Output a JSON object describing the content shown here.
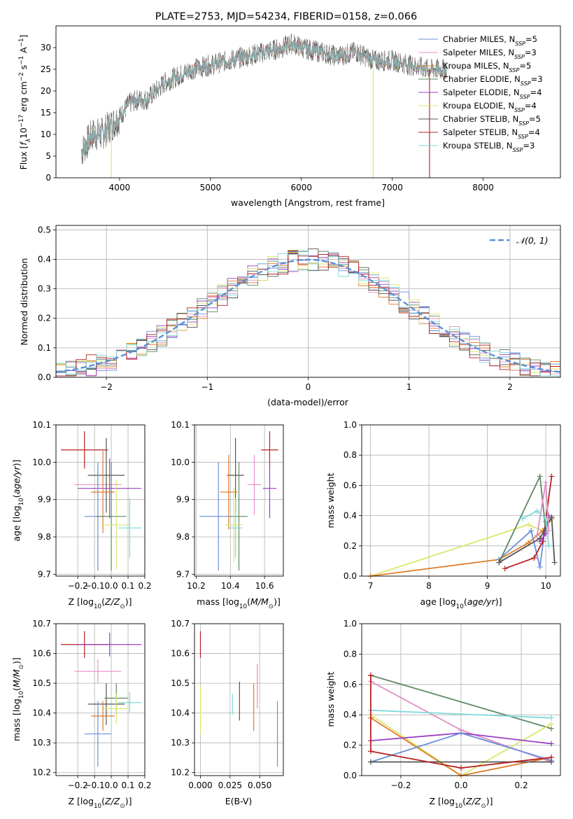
{
  "chart_data": [
    {
      "type": "line",
      "title": "PLATE=2753, MJD=54234, FIBERID=0158, z=0.066",
      "xlabel": "wavelength [Angstrom, rest frame]",
      "ylabel": "Flux [f_λ 10^-17 erg cm^-2 s^-1 A^-1]",
      "xlim": [
        3300,
        8850
      ],
      "ylim": [
        0,
        35
      ],
      "xticks": [
        4000,
        5000,
        6000,
        7000,
        8000
      ],
      "yticks": [
        0,
        5,
        10,
        15,
        20,
        25,
        30
      ],
      "legend_position": "top-right",
      "continuum": {
        "x": [
          3580,
          3700,
          3800,
          3900,
          4000,
          4100,
          4200,
          4300,
          4400,
          4500,
          4600,
          4800,
          5000,
          5200,
          5400,
          5600,
          5800,
          5900,
          6000,
          6200,
          6400,
          6600,
          6800,
          7000,
          7200,
          7400,
          7600
        ],
        "y": [
          6,
          10,
          10,
          12,
          14,
          17,
          18,
          18,
          20,
          22,
          23,
          25,
          26,
          27,
          28,
          29,
          30,
          31,
          30,
          29,
          28,
          29,
          27,
          27,
          26,
          25,
          25
        ]
      },
      "series": [
        {
          "name": "Chabrier MILES, N_SSP=5",
          "color": "#6a8fd8"
        },
        {
          "name": "Salpeter MILES, N_SSP=3",
          "color": "#e48ec6"
        },
        {
          "name": "Kroupa MILES, N_SSP=5",
          "color": "#e07b2a"
        },
        {
          "name": "Chabrier ELODIE, N_SSP=3",
          "color": "#5e8a64"
        },
        {
          "name": "Salpeter ELODIE, N_SSP=4",
          "color": "#9a3fc2"
        },
        {
          "name": "Kroupa ELODIE, N_SSP=4",
          "color": "#d8e86a"
        },
        {
          "name": "Chabrier STELIB, N_SSP=5",
          "color": "#555555"
        },
        {
          "name": "Salpeter STELIB, N_SSP=4",
          "color": "#b52020"
        },
        {
          "name": "Kroupa STELIB, N_SSP=3",
          "color": "#7fd8dc"
        }
      ],
      "legend_labels": [
        {
          "base": "Chabrier MILES, N",
          "sub": "SSP",
          "tail": "=5"
        },
        {
          "base": "Salpeter MILES, N",
          "sub": "SSP",
          "tail": "=3"
        },
        {
          "base": "Kroupa MILES, N",
          "sub": "SSP",
          "tail": "=5"
        },
        {
          "base": "Chabrier ELODIE, N",
          "sub": "SSP",
          "tail": "=3"
        },
        {
          "base": "Salpeter ELODIE, N",
          "sub": "SSP",
          "tail": "=4"
        },
        {
          "base": "Kroupa ELODIE, N",
          "sub": "SSP",
          "tail": "=4"
        },
        {
          "base": "Chabrier STELIB, N",
          "sub": "SSP",
          "tail": "=5"
        },
        {
          "base": "Salpeter STELIB, N",
          "sub": "SSP",
          "tail": "=4"
        },
        {
          "base": "Kroupa STELIB, N",
          "sub": "SSP",
          "tail": "=3"
        }
      ],
      "dropouts": [
        {
          "x": 3910,
          "color": "#d8e86a"
        },
        {
          "x": 6790,
          "color": "#d8e86a"
        },
        {
          "x": 7410,
          "color": "#b52020"
        }
      ]
    },
    {
      "type": "line",
      "title": "",
      "xlabel": "(data-model)/error",
      "ylabel": "Normed distribution",
      "xlim": [
        -2.5,
        2.5
      ],
      "ylim": [
        0,
        0.515
      ],
      "xticks": [
        -2,
        -1,
        0,
        1,
        2
      ],
      "yticks": [
        0.0,
        0.1,
        0.2,
        0.3,
        0.4,
        0.5
      ],
      "grid": true,
      "legend_position": "top-right",
      "legend_label": "𝒩(0, 1)",
      "reference_curve": "normal(0,1)",
      "series_colors": [
        "#6a8fd8",
        "#e48ec6",
        "#e07b2a",
        "#5e8a64",
        "#9a3fc2",
        "#d8e86a",
        "#555555",
        "#b52020",
        "#7fd8dc"
      ]
    },
    {
      "type": "scatter",
      "xlabel": "Z [log10(Z/Z⊙)]",
      "ylabel": "age [log10(age/yr)]",
      "xlim": [
        -0.33,
        0.2
      ],
      "ylim": [
        9.695,
        10.1
      ],
      "xticks": [
        -0.2,
        -0.1,
        0.0,
        0.1,
        0.2
      ],
      "yticks": [
        9.7,
        9.8,
        9.9,
        10.0,
        10.1
      ],
      "grid": true,
      "points": [
        {
          "x": -0.16,
          "y": 10.033,
          "xerr": 0.14,
          "yerr": 0.05,
          "color": "#b52020"
        },
        {
          "x": -0.08,
          "y": 9.94,
          "xerr": 0.14,
          "yerr": 0.04,
          "color": "#e48ec6"
        },
        {
          "x": -0.01,
          "y": 9.93,
          "xerr": 0.19,
          "yerr": 0.08,
          "color": "#9a3fc2"
        },
        {
          "x": -0.03,
          "y": 9.965,
          "xerr": 0.11,
          "yerr": 0.1,
          "color": "#555555"
        },
        {
          "x": -0.05,
          "y": 9.92,
          "xerr": 0.07,
          "yerr": 0.11,
          "color": "#e07b2a"
        },
        {
          "x": -0.08,
          "y": 9.855,
          "xerr": 0.08,
          "yerr": 0.145,
          "color": "#6a8fd8"
        },
        {
          "x": 0.0,
          "y": 9.855,
          "xerr": 0.09,
          "yerr": 0.145,
          "color": "#5e8a64"
        },
        {
          "x": 0.03,
          "y": 9.832,
          "xerr": 0.08,
          "yerr": 0.12,
          "color": "#d8e86a"
        },
        {
          "x": 0.11,
          "y": 9.824,
          "xerr": 0.07,
          "yerr": 0.08,
          "color": "#7fd8dc"
        }
      ]
    },
    {
      "type": "scatter",
      "xlabel": "mass [log10(M/M⊙)]",
      "ylabel": "",
      "xlim": [
        10.19,
        10.71
      ],
      "ylim": [
        9.695,
        10.1
      ],
      "xticks": [
        10.2,
        10.4,
        10.6
      ],
      "yticks": [
        9.7,
        9.8,
        9.9,
        10.0,
        10.1
      ],
      "grid": true,
      "points": [
        {
          "x": 10.63,
          "y": 10.033,
          "xerr": 0.05,
          "yerr": 0.05,
          "color": "#b52020"
        },
        {
          "x": 10.54,
          "y": 9.94,
          "xerr": 0.04,
          "yerr": 0.08,
          "color": "#e48ec6"
        },
        {
          "x": 10.63,
          "y": 9.93,
          "xerr": 0.04,
          "yerr": 0.08,
          "color": "#9a3fc2"
        },
        {
          "x": 10.43,
          "y": 9.965,
          "xerr": 0.05,
          "yerr": 0.1,
          "color": "#555555"
        },
        {
          "x": 10.39,
          "y": 9.92,
          "xerr": 0.05,
          "yerr": 0.1,
          "color": "#e07b2a"
        },
        {
          "x": 10.33,
          "y": 9.855,
          "xerr": 0.11,
          "yerr": 0.145,
          "color": "#6a8fd8"
        },
        {
          "x": 10.45,
          "y": 9.855,
          "xerr": 0.05,
          "yerr": 0.145,
          "color": "#5e8a64"
        },
        {
          "x": 10.42,
          "y": 9.832,
          "xerr": 0.05,
          "yerr": 0.1,
          "color": "#d8e86a"
        },
        {
          "x": 10.43,
          "y": 9.824,
          "xerr": 0.04,
          "yerr": 0.08,
          "color": "#7fd8dc"
        }
      ]
    },
    {
      "type": "line",
      "xlabel": "age [log10(age/yr)]",
      "ylabel": "mass weight",
      "xlim": [
        6.85,
        10.25
      ],
      "ylim": [
        0,
        1.0
      ],
      "xticks": [
        7,
        8,
        9,
        10
      ],
      "yticks": [
        0.0,
        0.2,
        0.4,
        0.6,
        0.8,
        1.0
      ],
      "grid": true,
      "series": [
        {
          "color": "#d8e86a",
          "x": [
            7.0,
            9.7,
            9.95,
            10.05
          ],
          "y": [
            0.0,
            0.34,
            0.3,
            0.36
          ]
        },
        {
          "color": "#e07b2a",
          "x": [
            7.0,
            9.2,
            9.7,
            9.95,
            10.1
          ],
          "y": [
            0.0,
            0.11,
            0.22,
            0.3,
            0.38
          ]
        },
        {
          "color": "#6a8fd8",
          "x": [
            9.2,
            9.75,
            9.9,
            10.0
          ],
          "y": [
            0.11,
            0.3,
            0.06,
            0.36
          ]
        },
        {
          "color": "#b52020",
          "x": [
            9.3,
            9.8,
            9.95,
            10.1
          ],
          "y": [
            0.05,
            0.12,
            0.23,
            0.66
          ]
        },
        {
          "color": "#5e8a64",
          "x": [
            9.2,
            9.9,
            10.0
          ],
          "y": [
            0.09,
            0.66,
            0.3
          ]
        },
        {
          "color": "#555555",
          "x": [
            9.2,
            9.9,
            10.1,
            10.15
          ],
          "y": [
            0.09,
            0.25,
            0.39,
            0.09
          ]
        },
        {
          "color": "#9a3fc2",
          "x": [
            9.9,
            10.0,
            10.05
          ],
          "y": [
            0.23,
            0.28,
            0.4
          ]
        },
        {
          "color": "#e48ec6",
          "x": [
            9.85,
            10.0,
            10.05
          ],
          "y": [
            0.27,
            0.62,
            0.3
          ]
        },
        {
          "color": "#7fd8dc",
          "x": [
            9.6,
            9.85,
            10.0,
            10.05
          ],
          "y": [
            0.38,
            0.43,
            0.38,
            0.2
          ]
        }
      ]
    },
    {
      "type": "scatter",
      "xlabel": "Z [log10(Z/Z⊙)]",
      "ylabel": "mass [log10(M/M⊙)]",
      "xlim": [
        -0.33,
        0.2
      ],
      "ylim": [
        10.19,
        10.7
      ],
      "xticks": [
        -0.2,
        -0.1,
        0.0,
        0.1,
        0.2
      ],
      "yticks": [
        10.2,
        10.3,
        10.4,
        10.5,
        10.6,
        10.7
      ],
      "grid": true,
      "points": [
        {
          "x": -0.16,
          "y": 10.63,
          "xerr": 0.14,
          "yerr": 0.045,
          "color": "#b52020"
        },
        {
          "x": -0.01,
          "y": 10.63,
          "xerr": 0.19,
          "yerr": 0.04,
          "color": "#9a3fc2"
        },
        {
          "x": -0.08,
          "y": 10.54,
          "xerr": 0.14,
          "yerr": 0.04,
          "color": "#e48ec6"
        },
        {
          "x": 0.03,
          "y": 10.45,
          "xerr": 0.07,
          "yerr": 0.05,
          "color": "#5e8a64"
        },
        {
          "x": -0.03,
          "y": 10.43,
          "xerr": 0.11,
          "yerr": 0.07,
          "color": "#555555"
        },
        {
          "x": 0.11,
          "y": 10.435,
          "xerr": 0.07,
          "yerr": 0.035,
          "color": "#7fd8dc"
        },
        {
          "x": 0.03,
          "y": 10.415,
          "xerr": 0.08,
          "yerr": 0.05,
          "color": "#d8e86a"
        },
        {
          "x": -0.05,
          "y": 10.39,
          "xerr": 0.07,
          "yerr": 0.05,
          "color": "#e07b2a"
        },
        {
          "x": -0.08,
          "y": 10.33,
          "xerr": 0.08,
          "yerr": 0.11,
          "color": "#6a8fd8"
        }
      ]
    },
    {
      "type": "scatter",
      "xlabel": "E(B-V)",
      "ylabel": "",
      "xlim": [
        -0.005,
        0.07
      ],
      "ylim": [
        10.19,
        10.7
      ],
      "xticks": [
        0.0,
        0.025,
        0.05
      ],
      "xticklabels": [
        "0.000",
        "0.025",
        "0.050"
      ],
      "yticks": [
        10.2,
        10.3,
        10.4,
        10.5,
        10.6,
        10.7
      ],
      "grid": true,
      "points": [
        {
          "x": 0.0,
          "y": 10.63,
          "yerr": 0.045,
          "color": "#b52020"
        },
        {
          "x": 0.0,
          "y": 10.41,
          "yerr": 0.08,
          "color": "#d8e86a"
        },
        {
          "x": 0.027,
          "y": 10.43,
          "yerr": 0.035,
          "color": "#7fd8dc"
        },
        {
          "x": 0.033,
          "y": 10.44,
          "yerr": 0.065,
          "color": "#555555"
        },
        {
          "x": 0.045,
          "y": 10.42,
          "yerr": 0.08,
          "color": "#e07b2a"
        },
        {
          "x": 0.048,
          "y": 10.49,
          "yerr": 0.075,
          "color": "#e48ec6"
        },
        {
          "x": 0.065,
          "y": 10.33,
          "yerr": 0.11,
          "color": "#6a8fd8"
        }
      ]
    },
    {
      "type": "line",
      "xlabel": "Z [log10(Z/Z⊙)]",
      "ylabel": "mass weight",
      "xlim": [
        -0.33,
        0.33
      ],
      "ylim": [
        0,
        1.0
      ],
      "xticks": [
        -0.2,
        0.0,
        0.2
      ],
      "yticks": [
        0.0,
        0.2,
        0.4,
        0.6,
        0.8,
        1.0
      ],
      "grid": true,
      "series": [
        {
          "color": "#5e8a64",
          "x": [
            -0.3,
            0.3
          ],
          "y": [
            0.66,
            0.31
          ]
        },
        {
          "color": "#e48ec6",
          "x": [
            -0.3,
            0.0,
            0.3
          ],
          "y": [
            0.62,
            0.3,
            0.09
          ]
        },
        {
          "color": "#7fd8dc",
          "x": [
            -0.3,
            0.3
          ],
          "y": [
            0.43,
            0.38
          ]
        },
        {
          "color": "#d8e86a",
          "x": [
            -0.3,
            0.0,
            0.3
          ],
          "y": [
            0.4,
            0.0,
            0.34
          ]
        },
        {
          "color": "#e07b2a",
          "x": [
            -0.3,
            0.0,
            0.3
          ],
          "y": [
            0.38,
            0.0,
            0.12
          ]
        },
        {
          "color": "#9a3fc2",
          "x": [
            -0.3,
            0.0,
            0.3
          ],
          "y": [
            0.23,
            0.28,
            0.21
          ]
        },
        {
          "color": "#6a8fd8",
          "x": [
            -0.3,
            0.0,
            0.3
          ],
          "y": [
            0.09,
            0.28,
            0.1
          ]
        },
        {
          "color": "#555555",
          "x": [
            -0.3,
            0.3
          ],
          "y": [
            0.09,
            0.09
          ]
        },
        {
          "color": "#b52020",
          "x": [
            -0.3,
            -0.3,
            0.0,
            0.3
          ],
          "y": [
            0.66,
            0.16,
            0.05,
            0.12
          ]
        }
      ]
    }
  ]
}
